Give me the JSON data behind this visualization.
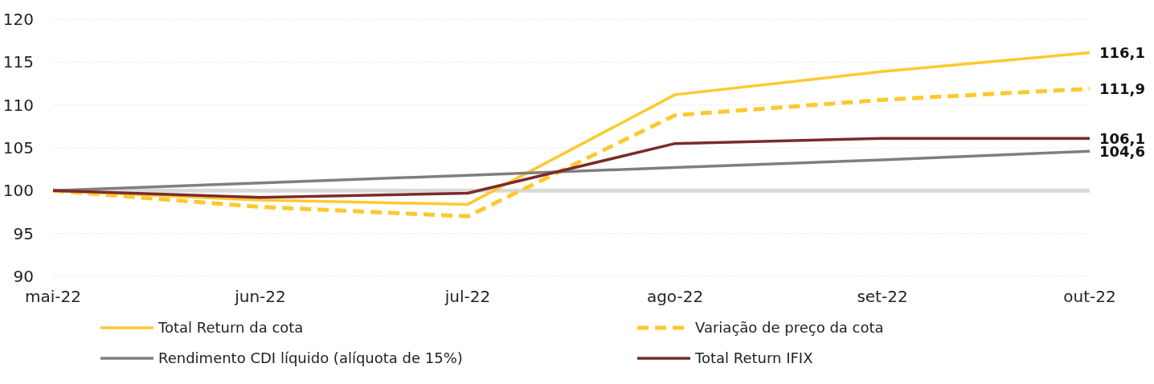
{
  "chart_data": {
    "type": "line",
    "categories": [
      "mai-22",
      "jun-22",
      "jul-22",
      "ago-22",
      "set-22",
      "out-22"
    ],
    "ylim": [
      90,
      120
    ],
    "yticks": [
      90,
      95,
      100,
      105,
      110,
      115,
      120
    ],
    "grid": "y",
    "legend": "bottom",
    "ref_lines": [
      {
        "axis": "y",
        "value": 100,
        "color": "#d9d9d9"
      }
    ],
    "series": [
      {
        "name": "Total Return da cota",
        "color": "#fdc92f",
        "line_style": "solid",
        "values": [
          100,
          98.9,
          98.4,
          111.2,
          113.9,
          116.1
        ],
        "value_labels": [
          null,
          null,
          null,
          null,
          null,
          "116,1"
        ]
      },
      {
        "name": "Variação de preço da cota",
        "color": "#fdc92f",
        "line_style": "dashed",
        "values": [
          100,
          98.1,
          97.0,
          108.8,
          110.6,
          111.9
        ],
        "value_labels": [
          null,
          null,
          null,
          null,
          null,
          "111,9"
        ]
      },
      {
        "name": "Rendimento CDI líquido (alíquota de 15%)",
        "color": "#7f7f7f",
        "line_style": "solid",
        "values": [
          100,
          100.9,
          101.8,
          102.7,
          103.6,
          104.6
        ],
        "value_labels": [
          null,
          null,
          null,
          null,
          null,
          "104,6"
        ]
      },
      {
        "name": "Total Return IFIX",
        "color": "#7b2a2a",
        "line_style": "solid",
        "values": [
          100,
          99.2,
          99.7,
          105.5,
          106.1,
          106.1
        ],
        "value_labels": [
          null,
          null,
          null,
          null,
          null,
          "106,1"
        ]
      }
    ]
  }
}
